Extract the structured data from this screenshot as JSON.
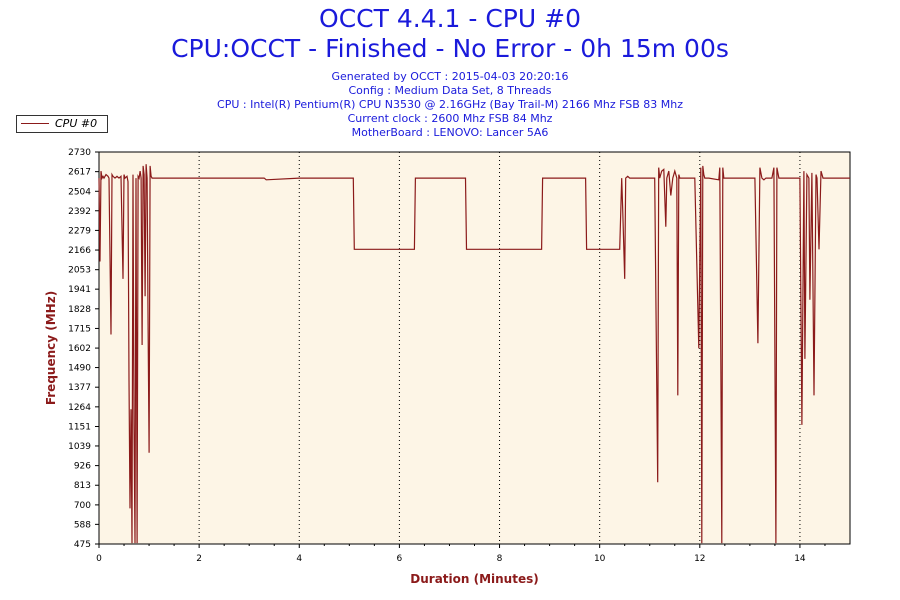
{
  "header": {
    "title": "OCCT 4.4.1 - CPU #0",
    "subtitle": "CPU:OCCT - Finished - No Error - 0h 15m 00s",
    "info": [
      "Generated by OCCT : 2015-04-03 20:20:16",
      "Config : Medium Data Set, 8 Threads",
      "CPU : Intel(R) Pentium(R) CPU N3530 @ 2.16GHz (Bay Trail-M) 2166 Mhz FSB 83 Mhz",
      "Current clock : 2600 Mhz FSB 84 Mhz",
      "MotherBoard : LENOVO: Lancer 5A6"
    ]
  },
  "colors": {
    "series": "#8b1a1a",
    "plot_bg": "#fdf5e6",
    "title": "#1a1adb"
  },
  "chart_data": {
    "type": "line",
    "title": "OCCT 4.4.1 - CPU #0",
    "xlabel": "Duration (Minutes)",
    "ylabel": "Frequency (MHz)",
    "xlim": [
      0,
      15
    ],
    "ylim": [
      475,
      2730
    ],
    "x_ticks": [
      "0",
      "2",
      "4",
      "6",
      "8",
      "10",
      "12",
      "14"
    ],
    "x_tick_values": [
      0,
      2,
      4,
      6,
      8,
      10,
      12,
      14
    ],
    "y_ticks": [
      "475",
      "588",
      "700",
      "813",
      "926",
      "1039",
      "1151",
      "1264",
      "1377",
      "1490",
      "1602",
      "1715",
      "1828",
      "1941",
      "2053",
      "2166",
      "2279",
      "2392",
      "2504",
      "2617",
      "2730"
    ],
    "y_tick_values": [
      475,
      588,
      700,
      813,
      926,
      1039,
      1151,
      1264,
      1377,
      1490,
      1602,
      1715,
      1828,
      1941,
      2053,
      2166,
      2279,
      2392,
      2504,
      2617,
      2730
    ],
    "grid": "vertical dotted",
    "legend_position": "top-left",
    "series": [
      {
        "name": "CPU #0",
        "x": [
          0,
          0.02,
          0.04,
          0.06,
          0.08,
          0.1,
          0.14,
          0.18,
          0.2,
          0.24,
          0.26,
          0.28,
          0.32,
          0.36,
          0.4,
          0.44,
          0.48,
          0.5,
          0.52,
          0.56,
          0.58,
          0.6,
          0.62,
          0.64,
          0.66,
          0.68,
          0.7,
          0.72,
          0.74,
          0.76,
          0.78,
          0.8,
          0.82,
          0.84,
          0.86,
          0.88,
          0.9,
          0.92,
          0.94,
          0.96,
          0.98,
          1.0,
          1.02,
          1.04,
          1.06,
          1.1,
          2.0,
          3.3,
          3.34,
          4.0,
          5.08,
          5.1,
          6.3,
          6.32,
          7.32,
          7.34,
          8.84,
          8.86,
          9.72,
          9.74,
          10.4,
          10.44,
          10.46,
          10.5,
          10.52,
          10.56,
          10.6,
          11.0,
          11.1,
          11.16,
          11.18,
          11.2,
          11.24,
          11.28,
          11.32,
          11.34,
          11.38,
          11.42,
          11.46,
          11.5,
          11.54,
          11.56,
          11.58,
          11.6,
          11.64,
          11.9,
          11.98,
          12.02,
          12.04,
          12.06,
          12.08,
          12.1,
          12.12,
          12.14,
          12.18,
          12.38,
          12.4,
          12.44,
          12.46,
          12.48,
          12.52,
          13.1,
          13.16,
          13.2,
          13.24,
          13.28,
          13.32,
          13.44,
          13.48,
          13.52,
          13.54,
          13.58,
          14.0,
          14.04,
          14.08,
          14.1,
          14.14,
          14.18,
          14.2,
          14.24,
          14.28,
          14.32,
          14.34,
          14.38,
          14.42,
          14.46,
          14.5,
          15.0
        ],
        "y": [
          2580,
          2100,
          2620,
          2580,
          2590,
          2580,
          2600,
          2590,
          2580,
          1680,
          2600,
          2590,
          2580,
          2590,
          2580,
          2590,
          2000,
          2600,
          2580,
          2590,
          2560,
          1420,
          680,
          1250,
          480,
          2600,
          1160,
          480,
          2580,
          480,
          2590,
          2580,
          2620,
          2580,
          1620,
          2650,
          2600,
          1900,
          2660,
          2580,
          1720,
          1000,
          2650,
          2590,
          2580,
          2580,
          2580,
          2580,
          2570,
          2580,
          2580,
          2170,
          2170,
          2580,
          2580,
          2170,
          2170,
          2580,
          2580,
          2170,
          2170,
          2580,
          2400,
          2000,
          2580,
          2590,
          2580,
          2580,
          2580,
          830,
          2640,
          2580,
          2620,
          2630,
          2300,
          2580,
          2620,
          2480,
          2580,
          2620,
          2580,
          1330,
          2600,
          2580,
          2580,
          2580,
          1600,
          2640,
          480,
          2650,
          2600,
          2580,
          2580,
          2580,
          2580,
          2570,
          2640,
          480,
          2640,
          2580,
          2580,
          2580,
          1630,
          2640,
          2580,
          2570,
          2580,
          2580,
          2640,
          480,
          2640,
          2580,
          2580,
          1160,
          2620,
          1540,
          2600,
          2580,
          1880,
          2610,
          1330,
          2600,
          2580,
          2170,
          2620,
          2580,
          2580,
          2580
        ]
      }
    ]
  }
}
